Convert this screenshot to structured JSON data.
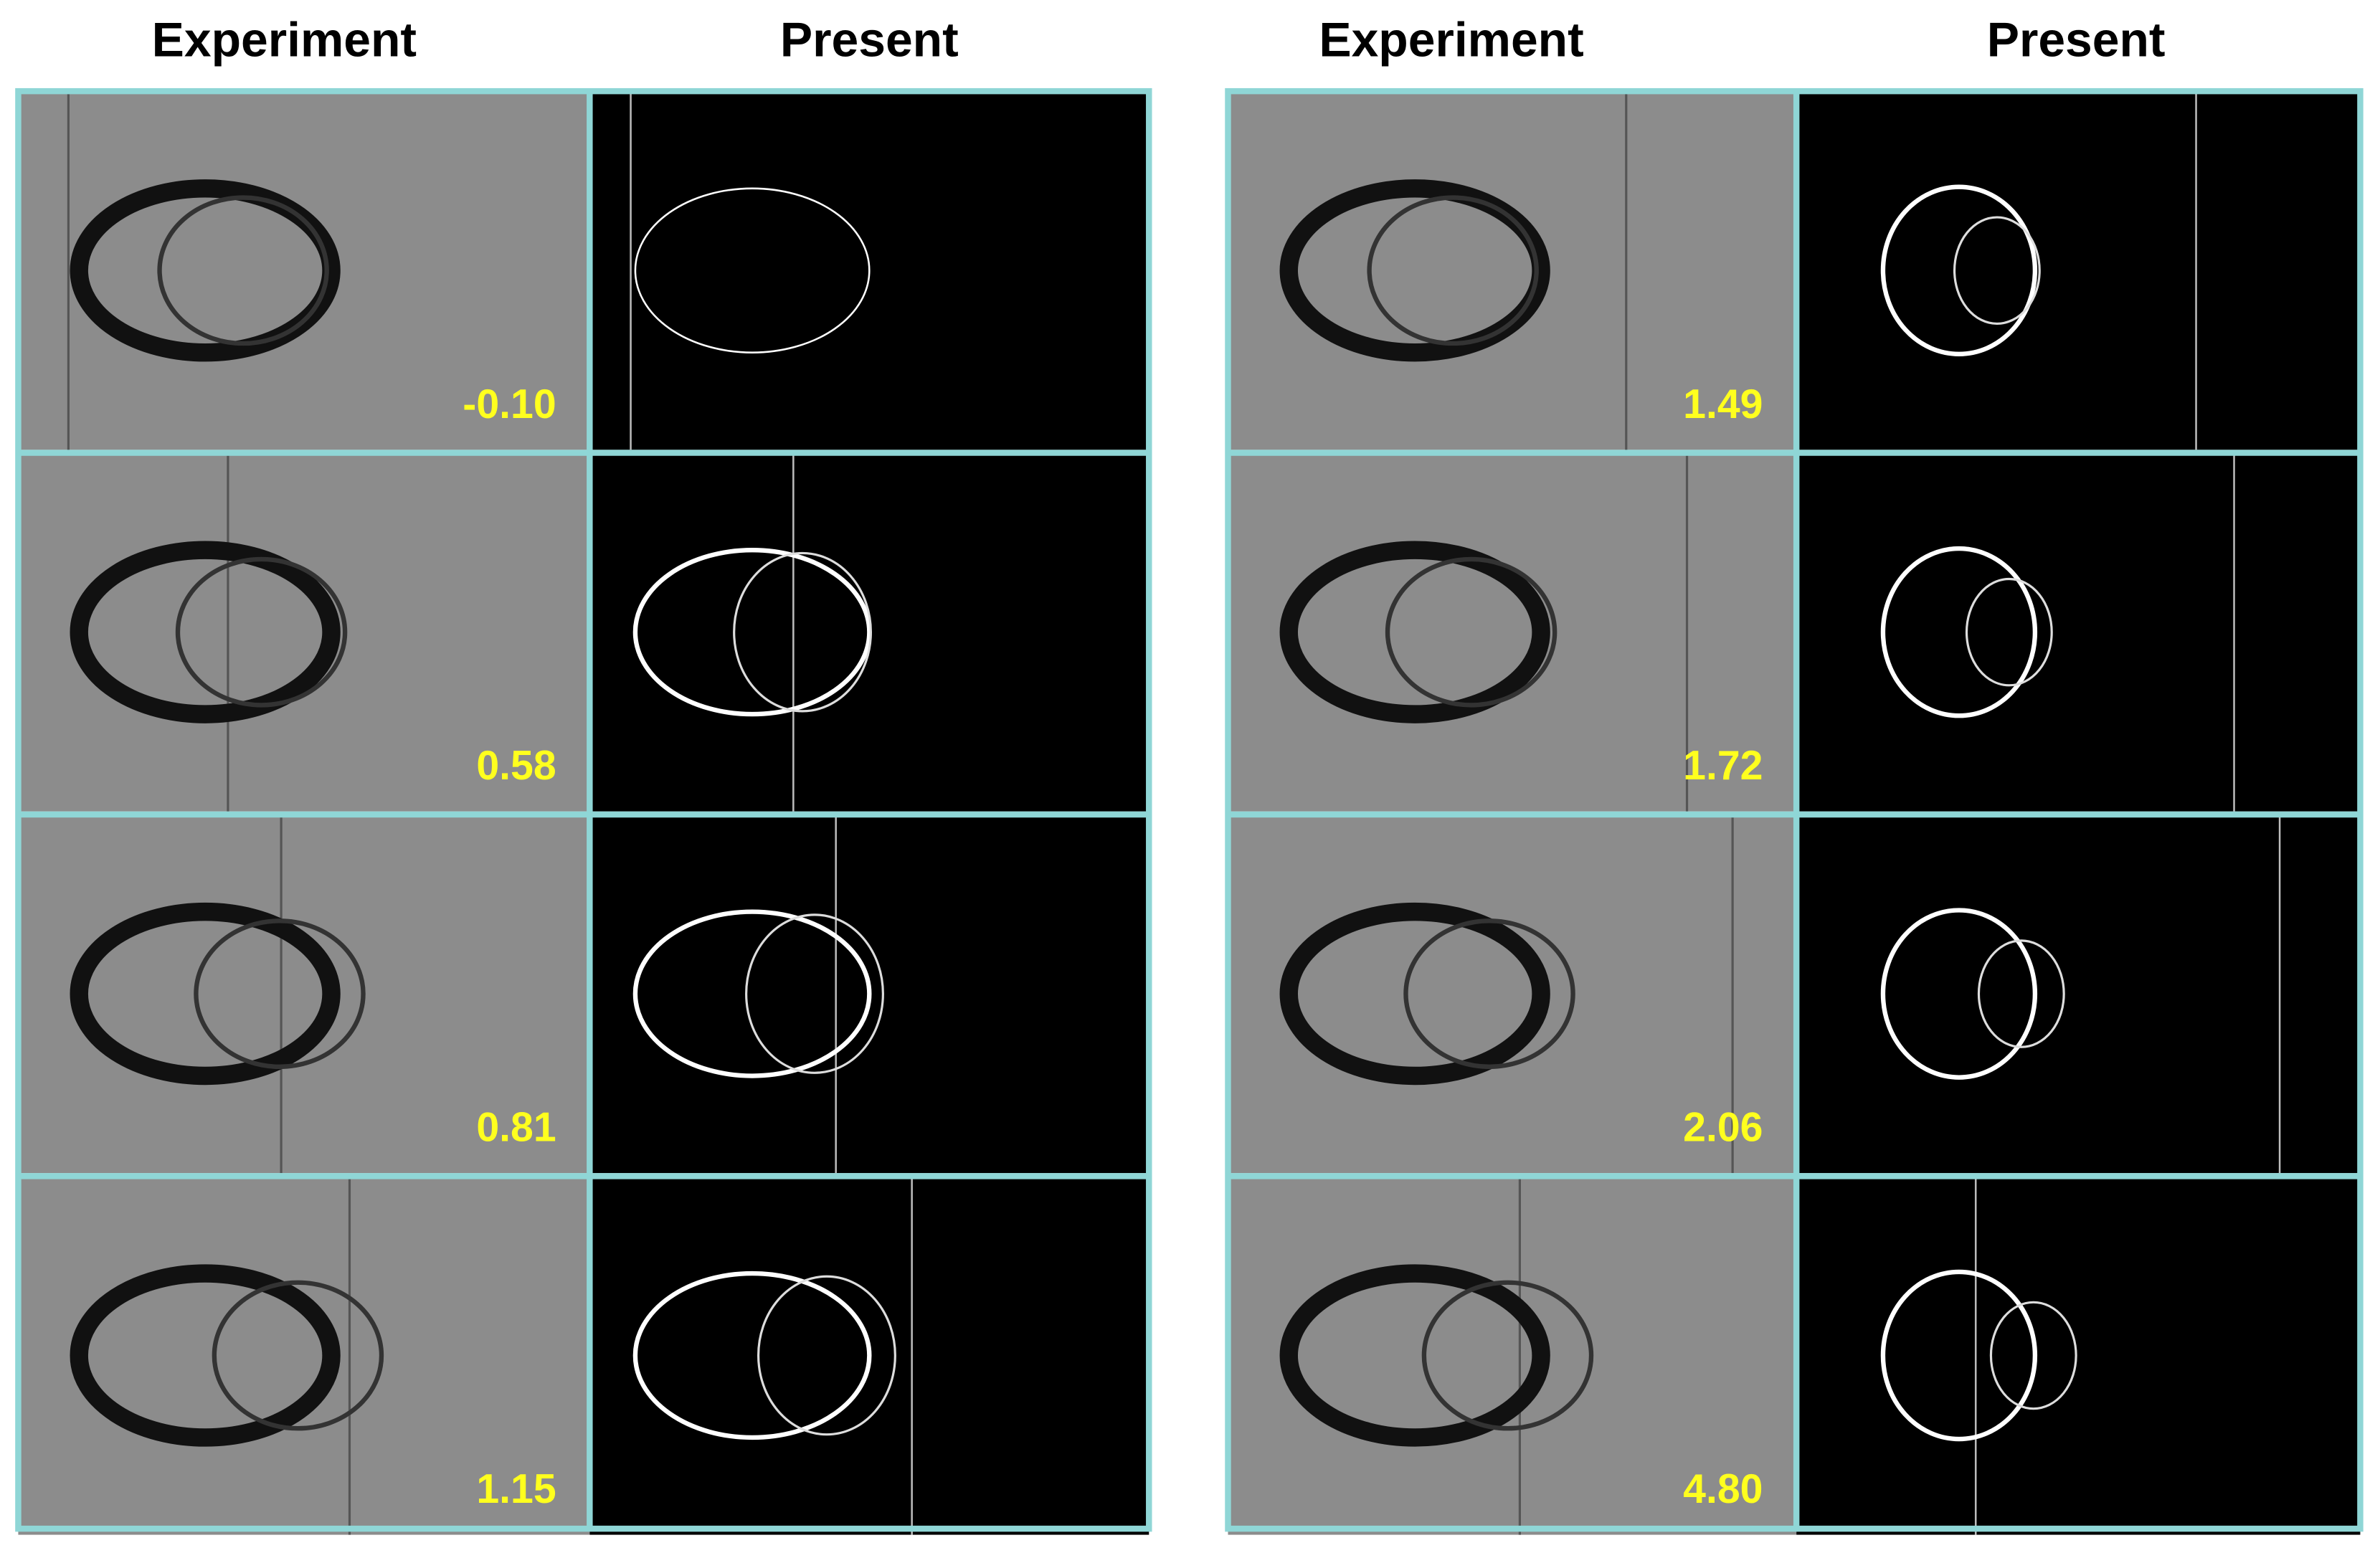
{
  "headers": [
    "Experiment",
    "Present",
    "Experiment",
    "Present"
  ],
  "panels": [
    {
      "times": [
        "-0.10",
        "0.58",
        "0.81",
        "1.15"
      ]
    },
    {
      "times": [
        "1.49",
        "1.72",
        "2.06",
        "4.80"
      ]
    }
  ]
}
